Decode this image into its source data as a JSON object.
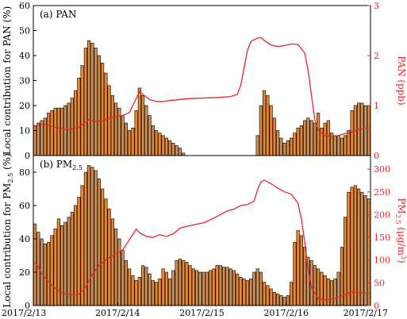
{
  "chart_data": [
    {
      "type": "bar",
      "title": "(a) PAN",
      "ylabel": "Local contribution for PAN (%)",
      "y2label": "PAN (ppb)",
      "ylim": [
        0,
        60
      ],
      "yticks": [
        0,
        10,
        20,
        30,
        40,
        50,
        60
      ],
      "y2lim": [
        0,
        3
      ],
      "y2ticks": [
        0,
        1,
        2,
        3
      ],
      "line_color": "#e8262a",
      "bar_color": "#e0883b",
      "bars": [
        12,
        13,
        14,
        15,
        17,
        18,
        19,
        19,
        19,
        20,
        21,
        23,
        26,
        31,
        36,
        43,
        46,
        45,
        43,
        40,
        37,
        33,
        28,
        24,
        21,
        19,
        16,
        13,
        10,
        11,
        18,
        27,
        24,
        20,
        16,
        12,
        10,
        9,
        8,
        7,
        6,
        5,
        4,
        3,
        1,
        null,
        null,
        null,
        null,
        null,
        null,
        null,
        null,
        null,
        null,
        null,
        null,
        null,
        null,
        null,
        null,
        null,
        null,
        null,
        null,
        null,
        8,
        20,
        26,
        24,
        20,
        15,
        10,
        7,
        5,
        6,
        7,
        9,
        11,
        12,
        14,
        15,
        14,
        13,
        17,
        11,
        13,
        14,
        9,
        8,
        8,
        7,
        8,
        10,
        18,
        20,
        21,
        21,
        20,
        20
      ],
      "line": [
        {
          "x": 0,
          "y": 0.58
        },
        {
          "x": 1,
          "y": 0.62
        },
        {
          "x": 3,
          "y": 0.62
        },
        {
          "x": 5,
          "y": 0.58
        },
        {
          "x": 8,
          "y": 0.54
        },
        {
          "x": 10,
          "y": 0.52
        },
        {
          "x": 13,
          "y": 0.57
        },
        {
          "x": 15,
          "y": 0.66
        },
        {
          "x": 16,
          "y": 0.72
        },
        {
          "x": 18,
          "y": 0.68
        },
        {
          "x": 20,
          "y": 0.7
        },
        {
          "x": 22,
          "y": 0.74
        },
        {
          "x": 24,
          "y": 0.78
        },
        {
          "x": 26,
          "y": 0.8
        },
        {
          "x": 28,
          "y": 0.86
        },
        {
          "x": 29,
          "y": 1.0
        },
        {
          "x": 31,
          "y": 1.28
        },
        {
          "x": 32,
          "y": 1.22
        },
        {
          "x": 34,
          "y": 1.12
        },
        {
          "x": 36,
          "y": 1.08
        },
        {
          "x": 38,
          "y": 1.08
        },
        {
          "x": 40,
          "y": 1.1
        },
        {
          "x": 43,
          "y": 1.12
        },
        {
          "x": 46,
          "y": 1.14
        },
        {
          "x": 50,
          "y": 1.15
        },
        {
          "x": 54,
          "y": 1.16
        },
        {
          "x": 58,
          "y": 1.18
        },
        {
          "x": 60,
          "y": 1.22
        },
        {
          "x": 61,
          "y": 1.4
        },
        {
          "x": 62,
          "y": 1.75
        },
        {
          "x": 63,
          "y": 2.1
        },
        {
          "x": 64,
          "y": 2.28
        },
        {
          "x": 66,
          "y": 2.35
        },
        {
          "x": 67,
          "y": 2.36
        },
        {
          "x": 68,
          "y": 2.3
        },
        {
          "x": 70,
          "y": 2.21
        },
        {
          "x": 72,
          "y": 2.18
        },
        {
          "x": 74,
          "y": 2.2
        },
        {
          "x": 76,
          "y": 2.23
        },
        {
          "x": 78,
          "y": 2.22
        },
        {
          "x": 80,
          "y": 2.05
        },
        {
          "x": 81,
          "y": 1.7
        },
        {
          "x": 82,
          "y": 1.2
        },
        {
          "x": 83,
          "y": 0.7
        },
        {
          "x": 84,
          "y": 0.5
        },
        {
          "x": 86,
          "y": 0.4
        },
        {
          "x": 88,
          "y": 0.38
        },
        {
          "x": 90,
          "y": 0.4
        },
        {
          "x": 92,
          "y": 0.44
        },
        {
          "x": 94,
          "y": 0.48
        },
        {
          "x": 96,
          "y": 0.52
        },
        {
          "x": 97,
          "y": 0.53
        },
        {
          "x": 99,
          "y": 0.55
        }
      ]
    },
    {
      "type": "bar",
      "title": "(b) PM",
      "title_sub": "2.5",
      "ylabel": "Local contribution for PM",
      "ylabel_sub": "2.5",
      "ylabel_suffix": " (%)",
      "y2label": "PM",
      "y2label_sub": "2.5",
      "y2label_units": " (μg/m",
      "y2label_sup": "3",
      "y2label_close": ")",
      "ylim": [
        0,
        90
      ],
      "yticks": [
        0,
        20,
        40,
        60,
        80
      ],
      "y2lim": [
        0,
        330
      ],
      "y2ticks": [
        0,
        50,
        100,
        150,
        200,
        250,
        300
      ],
      "line_color": "#e8262a",
      "bar_color": "#e0883b",
      "bars": [
        49,
        44,
        40,
        37,
        38,
        42,
        46,
        52,
        48,
        50,
        53,
        56,
        60,
        65,
        72,
        80,
        84,
        83,
        81,
        76,
        70,
        64,
        58,
        52,
        46,
        40,
        33,
        27,
        22,
        18,
        15,
        17,
        24,
        23,
        19,
        15,
        14,
        16,
        22,
        20,
        16,
        21,
        27,
        28,
        27,
        26,
        24,
        22,
        21,
        20,
        20,
        20,
        21,
        22,
        24,
        24,
        23,
        23,
        22,
        21,
        19,
        17,
        16,
        15,
        16,
        20,
        22,
        20,
        14,
        12,
        10,
        8,
        7,
        6,
        5,
        6,
        14,
        38,
        45,
        42,
        35,
        29,
        27,
        24,
        22,
        20,
        18,
        16,
        15,
        16,
        20,
        35,
        53,
        68,
        71,
        72,
        70,
        68,
        66,
        64
      ],
      "line": [
        {
          "x": 0,
          "y": 95
        },
        {
          "x": 1,
          "y": 85
        },
        {
          "x": 2,
          "y": 70
        },
        {
          "x": 4,
          "y": 52
        },
        {
          "x": 6,
          "y": 38
        },
        {
          "x": 8,
          "y": 28
        },
        {
          "x": 11,
          "y": 24
        },
        {
          "x": 13,
          "y": 25
        },
        {
          "x": 15,
          "y": 40
        },
        {
          "x": 17,
          "y": 68
        },
        {
          "x": 19,
          "y": 88
        },
        {
          "x": 21,
          "y": 100
        },
        {
          "x": 23,
          "y": 110
        },
        {
          "x": 25,
          "y": 118
        },
        {
          "x": 26,
          "y": 122
        },
        {
          "x": 28,
          "y": 145
        },
        {
          "x": 30,
          "y": 168
        },
        {
          "x": 31,
          "y": 160
        },
        {
          "x": 33,
          "y": 152
        },
        {
          "x": 35,
          "y": 150
        },
        {
          "x": 37,
          "y": 156
        },
        {
          "x": 39,
          "y": 152
        },
        {
          "x": 41,
          "y": 158
        },
        {
          "x": 43,
          "y": 170
        },
        {
          "x": 46,
          "y": 176
        },
        {
          "x": 50,
          "y": 182
        },
        {
          "x": 53,
          "y": 192
        },
        {
          "x": 55,
          "y": 200
        },
        {
          "x": 57,
          "y": 208
        },
        {
          "x": 59,
          "y": 212
        },
        {
          "x": 61,
          "y": 220
        },
        {
          "x": 63,
          "y": 222
        },
        {
          "x": 65,
          "y": 230
        },
        {
          "x": 66,
          "y": 255
        },
        {
          "x": 67,
          "y": 272
        },
        {
          "x": 68,
          "y": 276
        },
        {
          "x": 70,
          "y": 268
        },
        {
          "x": 72,
          "y": 258
        },
        {
          "x": 74,
          "y": 250
        },
        {
          "x": 76,
          "y": 245
        },
        {
          "x": 78,
          "y": 225
        },
        {
          "x": 79,
          "y": 190
        },
        {
          "x": 80,
          "y": 140
        },
        {
          "x": 81,
          "y": 80
        },
        {
          "x": 82,
          "y": 40
        },
        {
          "x": 84,
          "y": 15
        },
        {
          "x": 86,
          "y": 12
        },
        {
          "x": 88,
          "y": 14
        },
        {
          "x": 90,
          "y": 18
        },
        {
          "x": 92,
          "y": 24
        },
        {
          "x": 94,
          "y": 30
        },
        {
          "x": 97,
          "y": 28
        },
        {
          "x": 99,
          "y": 27
        }
      ]
    }
  ],
  "x_tick_labels": [
    "2017/2/13",
    "2017/2/14",
    "2017/2/15",
    "2017/2/16",
    "2017/2/17"
  ]
}
